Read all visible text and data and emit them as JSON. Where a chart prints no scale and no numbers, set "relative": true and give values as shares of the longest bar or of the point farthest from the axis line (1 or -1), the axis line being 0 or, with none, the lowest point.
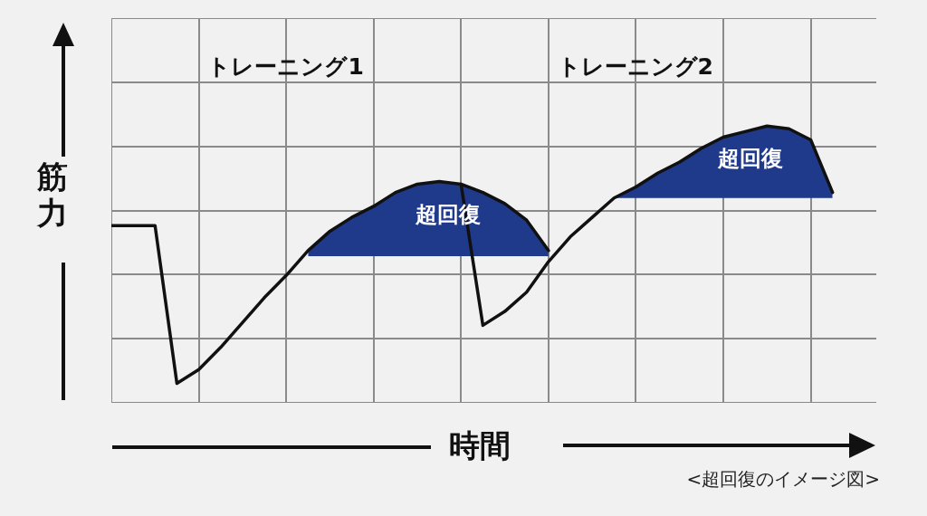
{
  "chart_data": {
    "type": "line",
    "relative": true,
    "xlabel": "時間",
    "ylabel": "筋力",
    "categories": [
      null,
      null,
      null,
      null,
      null,
      null,
      null,
      null,
      null,
      null,
      null,
      null,
      null,
      null,
      null,
      null,
      null,
      null,
      null,
      null,
      null,
      null,
      null,
      null,
      null,
      null,
      null,
      null,
      null,
      null,
      null,
      null,
      null,
      null,
      null,
      null
    ],
    "tick_labels": false,
    "grid": true,
    "legend": false,
    "marker": "none",
    "line_style": "solid",
    "series": [
      {
        "color": "#111111",
        "values": [
          0.64,
          0.64,
          0.64,
          0.07,
          0.12,
          0.2,
          0.29,
          0.38,
          0.46,
          0.55,
          0.62,
          0.67,
          0.71,
          0.76,
          0.79,
          0.8,
          0.79,
          0.76,
          0.72,
          0.66,
          0.55,
          null,
          null,
          null,
          null,
          null,
          null,
          null,
          null,
          null,
          null,
          null,
          null,
          null,
          null,
          null
        ],
        "lower": [
          null,
          null,
          null,
          null,
          null,
          null,
          null,
          null,
          null,
          0.53,
          0.53,
          0.53,
          0.53,
          0.53,
          0.53,
          0.53,
          0.53,
          0.53,
          0.53,
          0.53,
          0.53,
          null,
          null,
          null,
          null,
          null,
          null,
          null,
          null,
          null,
          null,
          null,
          null,
          null,
          null,
          null
        ],
        "upper": [
          null,
          null,
          null,
          null,
          null,
          null,
          null,
          null,
          null,
          0.55,
          0.62,
          0.67,
          0.71,
          0.76,
          0.79,
          0.8,
          0.79,
          0.76,
          0.72,
          0.66,
          0.55,
          null,
          null,
          null,
          null,
          null,
          null,
          null,
          null,
          null,
          null,
          null,
          null,
          null,
          null,
          null
        ]
      },
      {
        "color": "#111111",
        "values": [
          null,
          null,
          null,
          null,
          null,
          null,
          null,
          null,
          null,
          null,
          null,
          null,
          null,
          null,
          null,
          null,
          0.79,
          0.28,
          0.33,
          0.4,
          0.51,
          0.6,
          0.67,
          0.74,
          0.78,
          0.83,
          0.87,
          0.92,
          0.96,
          0.98,
          1.0,
          0.99,
          0.95,
          0.76,
          null,
          null
        ],
        "lower": [
          null,
          null,
          null,
          null,
          null,
          null,
          null,
          null,
          null,
          null,
          null,
          null,
          null,
          null,
          null,
          null,
          null,
          null,
          null,
          null,
          null,
          null,
          null,
          0.74,
          0.74,
          0.74,
          0.74,
          0.74,
          0.74,
          0.74,
          0.74,
          0.74,
          0.74,
          0.74,
          null,
          null
        ],
        "upper": [
          null,
          null,
          null,
          null,
          null,
          null,
          null,
          null,
          null,
          null,
          null,
          null,
          null,
          null,
          null,
          null,
          null,
          null,
          null,
          null,
          null,
          null,
          null,
          0.74,
          0.78,
          0.83,
          0.87,
          0.92,
          0.96,
          0.98,
          1.0,
          0.99,
          0.95,
          0.76,
          null,
          null
        ]
      }
    ],
    "annotations": [
      "トレーニング1",
      "トレーニング2",
      "超回復",
      "超回復",
      "<超回復のイメージ図>"
    ]
  }
}
